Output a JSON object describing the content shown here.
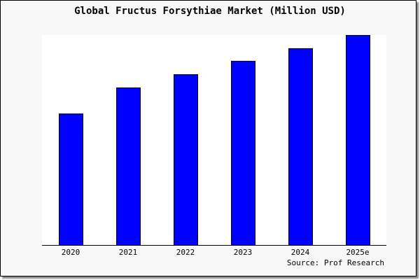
{
  "chart_data": {
    "type": "bar",
    "title": "Global Fructus Forsythiae Market (Million USD)",
    "categories": [
      "2020",
      "2021",
      "2022",
      "2023",
      "2024",
      "2025e"
    ],
    "values": [
      62.6,
      75.0,
      81.3,
      87.7,
      93.7,
      100
    ],
    "value_note_scale": "relative, 2025e = 100 (no y-axis printed)",
    "ylim": [
      0,
      100
    ],
    "xlabel": "",
    "ylabel": "",
    "grid": false,
    "legend": "none",
    "source": "Source: Prof Research",
    "colors": {
      "bar": "#0000ff",
      "bar_outline": "#000000",
      "plot_bg": "#ffffff",
      "page_bg": "#f8f8f8"
    }
  }
}
